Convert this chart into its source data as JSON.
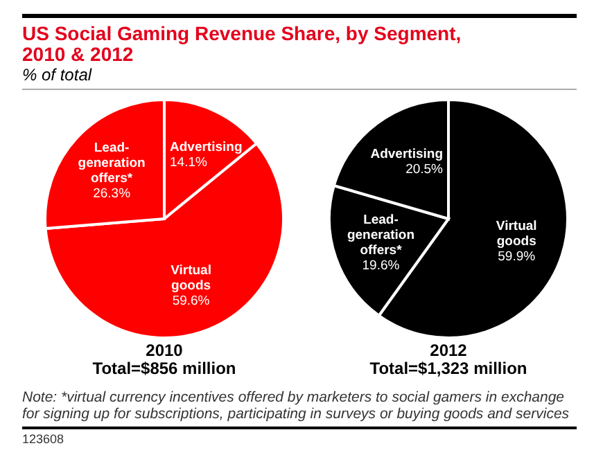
{
  "chart_data": [
    {
      "type": "pie",
      "title": "US Social Gaming Revenue Share, by Segment, 2010 & 2012",
      "subtitle": "% of total",
      "xlabel": "2010",
      "categories": [
        "Advertising",
        "Virtual goods",
        "Lead-generation offers*"
      ],
      "values": [
        14.1,
        59.6,
        26.3
      ],
      "value_labels": [
        "14.1%",
        "59.6%",
        "26.3%"
      ],
      "colors": [
        "#ff0000",
        "#ff0000",
        "#ff0000"
      ],
      "legend": false,
      "annotations": [
        "Total=$856 million",
        "Note: *virtual currency incentives offered by marketers to social gamers in exchange for signing up for subscriptions, participating in surveys or buying goods and services",
        "123608"
      ]
    },
    {
      "type": "pie",
      "xlabel": "2012",
      "categories": [
        "Virtual goods",
        "Lead-generation offers*",
        "Advertising"
      ],
      "values": [
        59.9,
        19.6,
        20.5
      ],
      "value_labels": [
        "59.9%",
        "19.6%",
        "20.5%"
      ],
      "colors": [
        "#000000",
        "#000000",
        "#000000"
      ],
      "legend": false,
      "annotations": [
        "Total=$1,323 million"
      ]
    }
  ]
}
